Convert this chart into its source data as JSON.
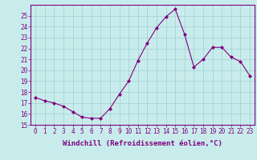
{
  "x": [
    0,
    1,
    2,
    3,
    4,
    5,
    6,
    7,
    8,
    9,
    10,
    11,
    12,
    13,
    14,
    15,
    16,
    17,
    18,
    19,
    20,
    21,
    22,
    23
  ],
  "y": [
    17.5,
    17.2,
    17.0,
    16.7,
    16.2,
    15.7,
    15.6,
    15.6,
    16.5,
    17.8,
    19.0,
    20.9,
    22.5,
    23.9,
    24.9,
    25.6,
    23.3,
    20.3,
    21.0,
    22.1,
    22.1,
    21.2,
    20.8,
    19.5
  ],
  "line_color": "#800080",
  "marker": "D",
  "marker_size": 2,
  "bg_color": "#c8ecec",
  "grid_color": "#a0d0d0",
  "xlabel": "Windchill (Refroidissement éolien,°C)",
  "ylim": [
    15,
    26
  ],
  "xlim": [
    -0.5,
    23.5
  ],
  "yticks": [
    15,
    16,
    17,
    18,
    19,
    20,
    21,
    22,
    23,
    24,
    25
  ],
  "xticks": [
    0,
    1,
    2,
    3,
    4,
    5,
    6,
    7,
    8,
    9,
    10,
    11,
    12,
    13,
    14,
    15,
    16,
    17,
    18,
    19,
    20,
    21,
    22,
    23
  ],
  "tick_fontsize": 5.5,
  "xlabel_fontsize": 6.5,
  "tick_color": "#800080",
  "spine_color": "#800080"
}
